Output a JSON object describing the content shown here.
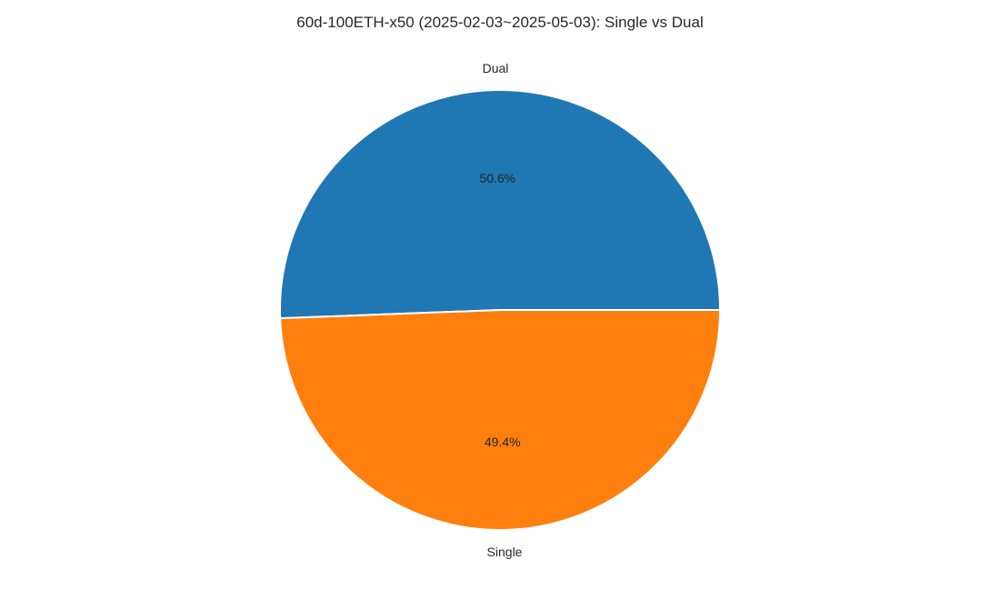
{
  "chart_data": {
    "type": "pie",
    "title": "60d-100ETH-x50 (2025-02-03~2025-05-03): Single vs Dual",
    "slices": [
      {
        "label": "Dual",
        "percent": 50.6,
        "color": "#1f77b4"
      },
      {
        "label": "Single",
        "percent": 49.4,
        "color": "#ff7f0e"
      }
    ],
    "start_angle_deg": 0,
    "direction": "counterclockwise",
    "pct_format": "{v}%",
    "edge_color": "#ffffff"
  }
}
